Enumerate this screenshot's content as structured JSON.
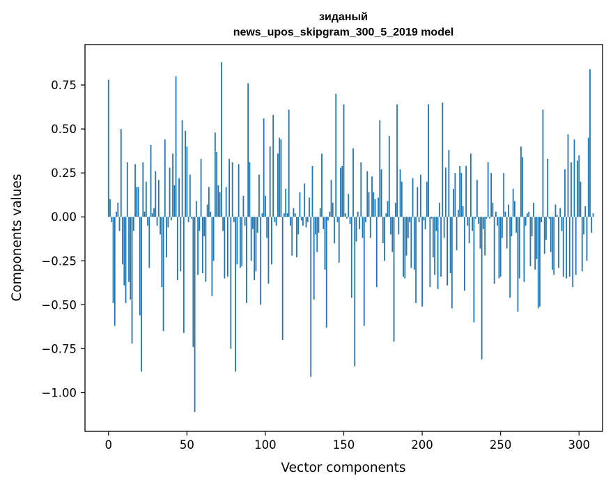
{
  "chart_data": {
    "type": "bar",
    "title_line1": "зиданый",
    "title_line2": "news_upos_skipgram_300_5_2019 model",
    "xlabel": "Vector components",
    "ylabel": "Components values",
    "xlim": [
      -15,
      315
    ],
    "ylim": [
      -1.22,
      0.98
    ],
    "xticks": [
      0,
      50,
      100,
      150,
      200,
      250,
      300
    ],
    "xtick_labels": [
      "0",
      "50",
      "100",
      "150",
      "200",
      "250",
      "300"
    ],
    "yticks": [
      -1.0,
      -0.75,
      -0.5,
      -0.25,
      0.0,
      0.25,
      0.5,
      0.75
    ],
    "ytick_labels": [
      "−1.00",
      "−0.75",
      "−0.50",
      "−0.25",
      "0.00",
      "0.25",
      "0.50",
      "0.75"
    ],
    "bar_color": "#1f77b4",
    "values": [
      0.78,
      0.1,
      -0.03,
      -0.49,
      -0.62,
      0.03,
      0.08,
      -0.08,
      0.5,
      -0.27,
      -0.39,
      -0.49,
      0.31,
      -0.37,
      -0.47,
      -0.72,
      -0.08,
      0.3,
      0.17,
      0.17,
      -0.56,
      -0.88,
      0.31,
      0.03,
      0.2,
      -0.05,
      -0.29,
      0.41,
      0.02,
      0.05,
      0.26,
      -0.05,
      0.21,
      -0.1,
      -0.4,
      -0.65,
      0.44,
      -0.23,
      -0.06,
      0.28,
      -0.02,
      0.36,
      0.18,
      0.8,
      -0.36,
      0.22,
      -0.31,
      0.55,
      -0.66,
      0.49,
      0.4,
      -0.03,
      0.24,
      -0.01,
      -0.74,
      -1.11,
      0.09,
      -0.33,
      -0.08,
      0.33,
      -0.32,
      -0.11,
      -0.37,
      0.07,
      0.17,
      0.03,
      -0.45,
      -0.25,
      0.48,
      0.37,
      0.18,
      0.14,
      0.88,
      -0.08,
      -0.35,
      0.17,
      -0.34,
      0.33,
      -0.75,
      0.31,
      -0.03,
      -0.88,
      -0.27,
      0.3,
      -0.29,
      -0.28,
      0.12,
      -0.05,
      -0.49,
      0.76,
      0.31,
      -0.25,
      -0.07,
      -0.36,
      -0.31,
      -0.09,
      0.24,
      -0.5,
      0.02,
      0.56,
      0.12,
      -0.12,
      -0.38,
      0.4,
      -0.27,
      0.58,
      -0.03,
      -0.05,
      0.36,
      0.45,
      0.44,
      -0.7,
      0.02,
      0.16,
      0.02,
      0.61,
      -0.05,
      -0.22,
      0.05,
      0.02,
      -0.23,
      -0.1,
      0.14,
      -0.02,
      -0.05,
      0.19,
      -0.06,
      -0.03,
      0.11,
      -0.91,
      0.29,
      -0.47,
      -0.1,
      -0.2,
      -0.09,
      0.05,
      0.36,
      -0.07,
      -0.3,
      -0.63,
      -0.02,
      0.03,
      0.21,
      0.08,
      -0.15,
      0.7,
      -0.03,
      -0.26,
      0.28,
      0.29,
      0.64,
      0.02,
      -0.01,
      0.13,
      -0.04,
      -0.46,
      0.39,
      -0.85,
      -0.14,
      0.03,
      -0.07,
      0.31,
      -0.12,
      -0.62,
      -0.03,
      0.26,
      0.14,
      -0.12,
      0.23,
      0.14,
      0.1,
      -0.4,
      0.11,
      0.55,
      0.27,
      -0.15,
      -0.25,
      0.02,
      0.09,
      0.46,
      -0.1,
      -0.2,
      -0.71,
      0.08,
      0.64,
      -0.1,
      0.27,
      0.2,
      -0.34,
      -0.35,
      -0.22,
      -0.12,
      -0.03,
      -0.29,
      0.22,
      -0.3,
      -0.49,
      0.17,
      -0.03,
      0.24,
      -0.51,
      -0.02,
      -0.07,
      0.2,
      0.64,
      -0.4,
      -0.01,
      -0.23,
      -0.33,
      -0.08,
      -0.41,
      0.08,
      -0.34,
      0.65,
      -0.12,
      0.28,
      -0.39,
      0.38,
      -0.32,
      -0.52,
      0.16,
      0.25,
      -0.19,
      0.04,
      0.29,
      0.25,
      0.06,
      -0.42,
      0.29,
      -0.05,
      -0.15,
      0.36,
      -0.08,
      -0.6,
      -0.01,
      0.21,
      -0.04,
      -0.18,
      -0.81,
      -0.07,
      -0.22,
      -0.01,
      0.31,
      -0.01,
      0.25,
      0.08,
      -0.38,
      0.03,
      -0.05,
      -0.35,
      -0.34,
      -0.12,
      0.25,
      0.03,
      -0.18,
      0.07,
      -0.46,
      -0.11,
      0.16,
      0.09,
      -0.09,
      -0.54,
      -0.35,
      0.4,
      0.34,
      -0.37,
      -0.05,
      0.02,
      0.03,
      -0.28,
      -0.11,
      0.08,
      -0.3,
      -0.24,
      -0.52,
      -0.51,
      -0.03,
      0.61,
      -0.21,
      -0.13,
      0.33,
      -0.01,
      -0.2,
      -0.3,
      -0.33,
      0.07,
      0.01,
      -0.29,
      0.05,
      -0.08,
      -0.34,
      0.27,
      -0.35,
      0.47,
      -0.34,
      0.31,
      -0.4,
      0.44,
      -0.33,
      0.32,
      0.35,
      0.2,
      -0.31,
      -0.1,
      0.06,
      -0.25,
      0.45,
      0.84,
      -0.09,
      0.02
    ]
  }
}
